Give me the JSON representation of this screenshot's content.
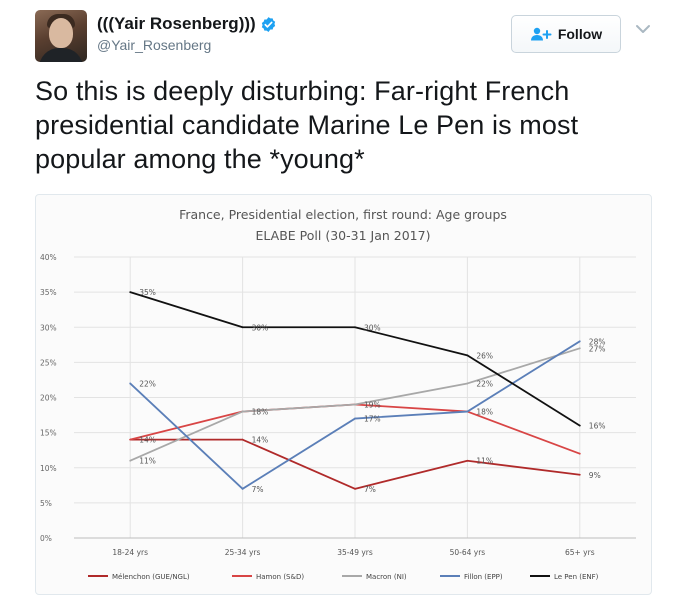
{
  "tweet": {
    "display_name": "(((Yair Rosenberg)))",
    "handle": "@Yair_Rosenberg",
    "follow_label": "Follow",
    "text": "So this is deeply disturbing: Far-right French presidential candidate Marine Le Pen is most popular among the *young*",
    "icons": {
      "verified": "verified-badge-icon",
      "follow": "add-user-icon",
      "caret": "chevron-down-icon"
    },
    "colors": {
      "verified": "#1da1f2",
      "text": "#14171a",
      "muted": "#657786"
    }
  },
  "chart_data": {
    "type": "line",
    "title": "France, Presidential election, first round: Age groups",
    "subtitle": "ELABE Poll (30-31 Jan 2017)",
    "categories": [
      "18-24 yrs",
      "25-34 yrs",
      "35-49 yrs",
      "50-64 yrs",
      "65+ yrs"
    ],
    "y_ticks": [
      "0%",
      "5%",
      "10%",
      "15%",
      "20%",
      "25%",
      "30%",
      "35%",
      "40%"
    ],
    "ylim": [
      0,
      40
    ],
    "grid": true,
    "legend_position": "bottom",
    "series": [
      {
        "name": "Mélenchon (GUE/NGL)",
        "color": "#b02a2a",
        "values": [
          14,
          14,
          7,
          11,
          9
        ],
        "labels": [
          "14%",
          "14%",
          "7%",
          "11%",
          "9%"
        ]
      },
      {
        "name": "Hamon (S&D)",
        "color": "#d84545",
        "values": [
          14,
          18,
          19,
          18,
          12
        ],
        "labels": [
          "",
          "",
          "19%",
          "18%",
          ""
        ]
      },
      {
        "name": "Macron (NI)",
        "color": "#a8a8a8",
        "values": [
          11,
          18,
          19,
          22,
          27
        ],
        "labels": [
          "11%",
          "18%",
          "",
          "22%",
          "27%"
        ]
      },
      {
        "name": "Fillon (EPP)",
        "color": "#5b7fb8",
        "values": [
          22,
          7,
          17,
          18,
          28
        ],
        "labels": [
          "22%",
          "7%",
          "17%",
          "",
          "28%"
        ]
      },
      {
        "name": "Le Pen (ENF)",
        "color": "#111111",
        "values": [
          35,
          30,
          30,
          26,
          16
        ],
        "labels": [
          "35%",
          "30%",
          "30%",
          "26%",
          "16%"
        ]
      }
    ]
  }
}
